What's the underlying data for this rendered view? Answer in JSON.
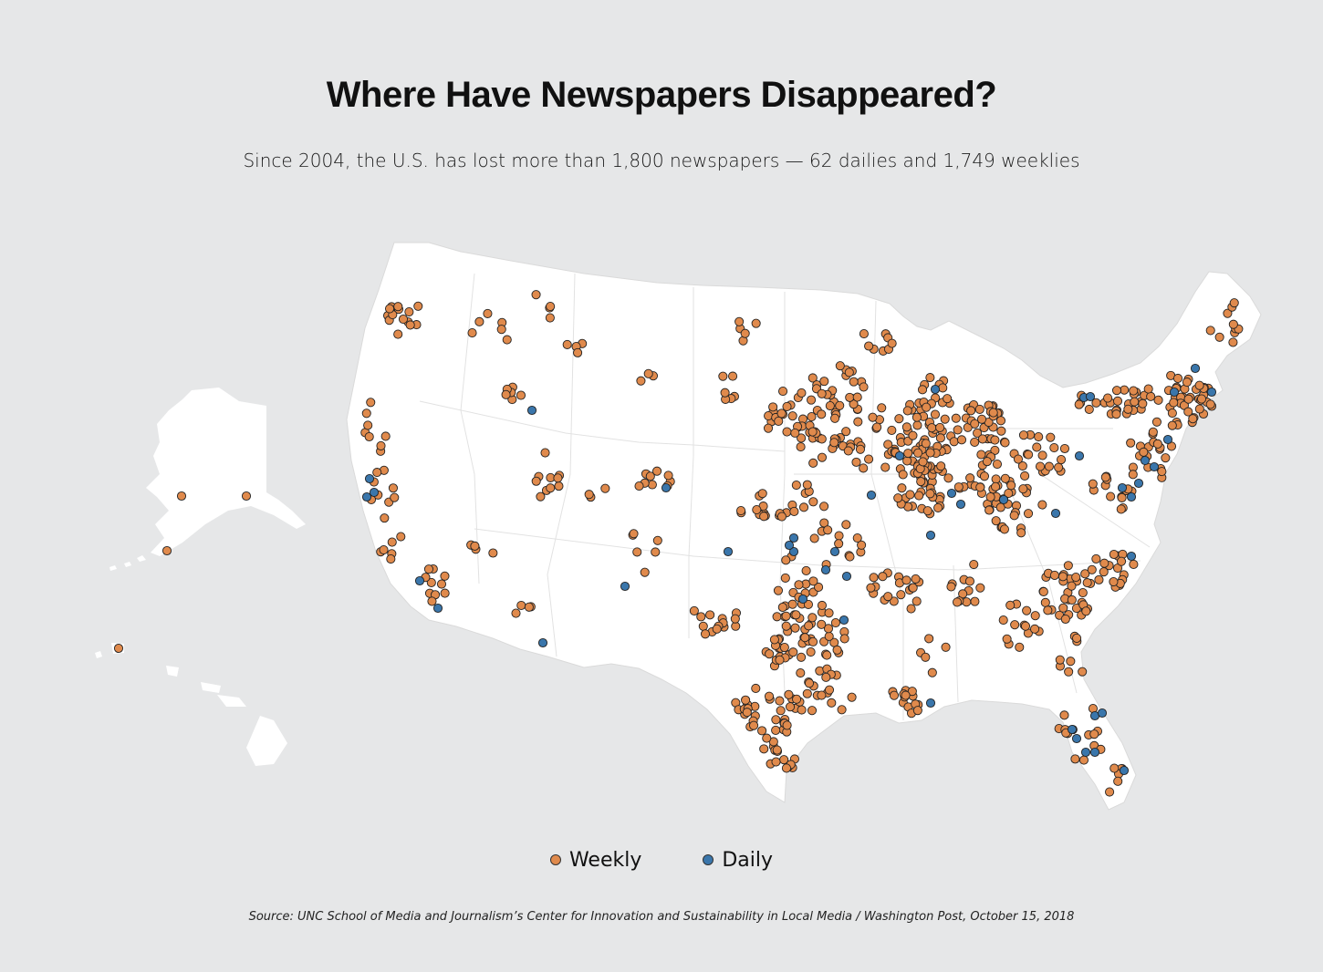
{
  "header": {
    "title": "Where Have Newspapers Disappeared?",
    "subtitle": "Since 2004, the U.S. has lost more than 1,800 newspapers — 62 dailies and 1,749 weeklies"
  },
  "legend": {
    "items": [
      {
        "label": "Weekly",
        "color": "#e08a4c"
      },
      {
        "label": "Daily",
        "color": "#3a76ab"
      }
    ]
  },
  "source": "Source: UNC School of Media and Journalism’s Center for Innovation and Sustainability in Local Media / Washington Post, October 15, 2018",
  "colors": {
    "background": "#e6e7e8",
    "land": "#ffffff",
    "weekly": "#e08a4c",
    "daily": "#3a76ab",
    "marker_stroke": "#222222"
  }
}
